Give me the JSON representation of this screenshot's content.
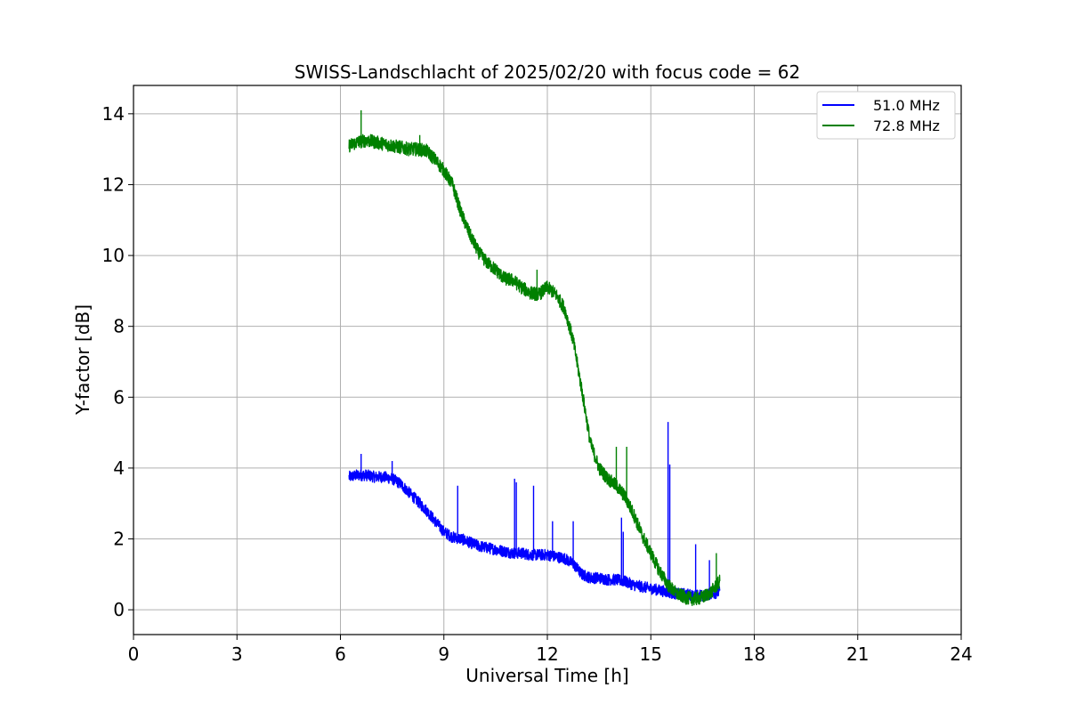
{
  "chart_data": {
    "type": "line",
    "title": "SWISS-Landschlacht of 2025/02/20 with focus code = 62",
    "xlabel": "Universal Time [h]",
    "ylabel": "Y-factor [dB]",
    "xlim": [
      0,
      24
    ],
    "ylim": [
      -0.7,
      14.8
    ],
    "xticks": [
      0,
      3,
      6,
      9,
      12,
      15,
      18,
      21,
      24
    ],
    "yticks": [
      0,
      2,
      4,
      6,
      8,
      10,
      12,
      14
    ],
    "grid": true,
    "legend_position": "top-right",
    "series": [
      {
        "name": "51.0 MHz",
        "color": "#0000ff",
        "x": [
          6.25,
          6.5,
          6.75,
          7.0,
          7.25,
          7.5,
          7.75,
          8.0,
          8.25,
          8.5,
          8.75,
          9.0,
          9.25,
          9.5,
          9.75,
          10.0,
          10.25,
          10.5,
          10.75,
          11.0,
          11.25,
          11.5,
          11.75,
          12.0,
          12.25,
          12.5,
          12.75,
          13.0,
          13.25,
          13.5,
          13.75,
          14.0,
          14.25,
          14.5,
          14.75,
          15.0,
          15.25,
          15.5,
          15.75,
          16.0,
          16.25,
          16.5,
          16.75,
          17.0
        ],
        "y": [
          3.75,
          3.8,
          3.8,
          3.75,
          3.75,
          3.7,
          3.55,
          3.3,
          3.05,
          2.8,
          2.5,
          2.2,
          2.05,
          2.0,
          1.9,
          1.8,
          1.75,
          1.7,
          1.65,
          1.6,
          1.6,
          1.55,
          1.55,
          1.55,
          1.5,
          1.45,
          1.3,
          1.0,
          0.9,
          0.9,
          0.85,
          0.85,
          0.8,
          0.7,
          0.65,
          0.6,
          0.55,
          0.5,
          0.45,
          0.45,
          0.4,
          0.4,
          0.45,
          0.5
        ]
      },
      {
        "name": "72.8 MHz",
        "color": "#008000",
        "x": [
          6.25,
          6.5,
          6.75,
          7.0,
          7.25,
          7.5,
          7.75,
          8.0,
          8.25,
          8.5,
          8.75,
          9.0,
          9.25,
          9.5,
          9.75,
          10.0,
          10.25,
          10.5,
          10.75,
          11.0,
          11.25,
          11.5,
          11.75,
          12.0,
          12.25,
          12.5,
          12.75,
          13.0,
          13.25,
          13.5,
          13.75,
          14.0,
          14.25,
          14.5,
          14.75,
          15.0,
          15.25,
          15.5,
          15.75,
          16.0,
          16.25,
          16.5,
          16.75,
          17.0
        ],
        "y": [
          13.1,
          13.2,
          13.25,
          13.2,
          13.15,
          13.1,
          13.05,
          13.0,
          13.0,
          12.95,
          12.7,
          12.4,
          12.0,
          11.2,
          10.6,
          10.1,
          9.8,
          9.6,
          9.35,
          9.3,
          9.1,
          8.95,
          8.9,
          9.1,
          8.9,
          8.5,
          7.6,
          6.2,
          4.7,
          4.0,
          3.7,
          3.5,
          3.2,
          2.7,
          2.1,
          1.6,
          1.1,
          0.7,
          0.45,
          0.35,
          0.3,
          0.35,
          0.5,
          0.8
        ]
      }
    ],
    "spikes": [
      {
        "series": 0,
        "x": 6.6,
        "y": 4.4
      },
      {
        "series": 0,
        "x": 7.5,
        "y": 4.2
      },
      {
        "series": 0,
        "x": 9.4,
        "y": 3.5
      },
      {
        "series": 0,
        "x": 11.05,
        "y": 3.7
      },
      {
        "series": 0,
        "x": 11.1,
        "y": 3.6
      },
      {
        "series": 0,
        "x": 11.6,
        "y": 3.5
      },
      {
        "series": 0,
        "x": 12.15,
        "y": 2.5
      },
      {
        "series": 0,
        "x": 12.75,
        "y": 2.5
      },
      {
        "series": 0,
        "x": 14.15,
        "y": 2.6
      },
      {
        "series": 0,
        "x": 14.2,
        "y": 2.2
      },
      {
        "series": 0,
        "x": 15.5,
        "y": 5.3
      },
      {
        "series": 0,
        "x": 15.55,
        "y": 4.1
      },
      {
        "series": 0,
        "x": 16.3,
        "y": 1.85
      },
      {
        "series": 0,
        "x": 16.7,
        "y": 1.4
      },
      {
        "series": 1,
        "x": 6.6,
        "y": 14.1
      },
      {
        "series": 1,
        "x": 8.3,
        "y": 13.4
      },
      {
        "series": 1,
        "x": 11.7,
        "y": 9.6
      },
      {
        "series": 1,
        "x": 14.3,
        "y": 4.6
      },
      {
        "series": 1,
        "x": 14.0,
        "y": 4.6
      },
      {
        "series": 1,
        "x": 16.9,
        "y": 1.6
      }
    ]
  }
}
